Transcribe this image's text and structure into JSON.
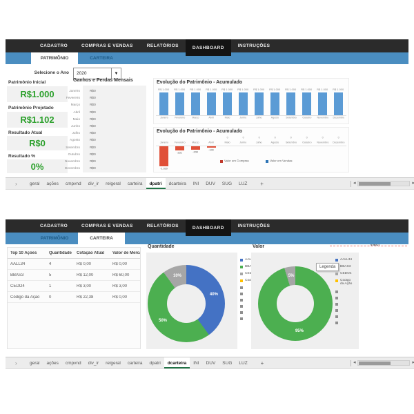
{
  "nav": {
    "items": [
      "CADASTRO",
      "COMPRAS E VENDAS",
      "RELATÓRIOS",
      "DASHBOARD",
      "INSTRUÇÕES"
    ],
    "active": "DASHBOARD"
  },
  "subtabs": {
    "items": [
      "PATRIMÔNIO",
      "CARTEIRA"
    ],
    "active_top": "PATRIMÔNIO",
    "active_bottom": "CARTEIRA"
  },
  "top": {
    "year": {
      "label": "Selecione o Ano",
      "value": "2020"
    },
    "cards": [
      {
        "label": "Patrimônio Inicial",
        "value": "R$1.000"
      },
      {
        "label": "Patrimônio Projetado",
        "value": "R$1.102"
      },
      {
        "label": "Resultado Atual",
        "value": "R$0"
      },
      {
        "label": "Resultado %",
        "value": "0%"
      }
    ],
    "monthly": {
      "title": "Ganhos e Perdas Mensais",
      "months": [
        "Janeiro",
        "Fevereiro",
        "Março",
        "Abril",
        "Maio",
        "Junho",
        "Julho",
        "Agosto",
        "Setembro",
        "Outubro",
        "Novembro",
        "Dezembro"
      ],
      "values": [
        "R$0",
        "R$0",
        "R$0",
        "R$0",
        "R$0",
        "R$0",
        "R$0",
        "R$0",
        "R$0",
        "R$0",
        "R$0",
        "R$0"
      ]
    }
  },
  "chart_data": [
    {
      "type": "bar",
      "title": "Evolução do Patrimônio - Acumulado",
      "categories": [
        "Janeiro",
        "Fevereiro",
        "Março",
        "Abril",
        "Maio",
        "Junho",
        "Julho",
        "Agosto",
        "Setembro",
        "Outubro",
        "Novembro",
        "Dezembro"
      ],
      "values": [
        1000,
        1000,
        1000,
        1000,
        1000,
        1000,
        1000,
        1000,
        1000,
        1000,
        1000,
        1000
      ],
      "value_labels": [
        "R$ 1.000",
        "R$ 1.000",
        "R$ 1.000",
        "R$ 1.000",
        "R$ 1.000",
        "R$ 1.000",
        "R$ 1.000",
        "R$ 1.000",
        "R$ 1.000",
        "R$ 1.000",
        "R$ 1.000",
        "R$ 1.000"
      ],
      "bar_color": "#5b9bd5",
      "ylim": [
        0,
        1000
      ]
    },
    {
      "type": "bar",
      "title": "Evolução do Patrimônio - Acumulado",
      "categories": [
        "Janeiro",
        "Fevereiro",
        "Março",
        "Abril",
        "Maio",
        "Junho",
        "Julho",
        "Agosto",
        "Setembro",
        "Outubro",
        "Novembro",
        "Dezembro"
      ],
      "values": [
        -1020,
        -231,
        -208,
        -100,
        0,
        0,
        0,
        0,
        0,
        0,
        0,
        0
      ],
      "value_labels": [
        "-1.020",
        "-231",
        "-208",
        "-100",
        "0",
        "0",
        "0",
        "0",
        "0",
        "0",
        "0",
        "0"
      ],
      "bar_color": "#e05038",
      "legend": [
        {
          "label": "Valor em Compras",
          "color": "#c0392b"
        },
        {
          "label": "Valor em Vendas",
          "color": "#2e75b6"
        }
      ],
      "ylim": [
        -1020,
        0
      ]
    },
    {
      "type": "pie",
      "title": "Quantidade",
      "labels": [
        "AALL34",
        "BBAS3",
        "CEDO4",
        "Código da Ação"
      ],
      "values": [
        4,
        5,
        1,
        0
      ],
      "pct_labels": [
        "40%",
        "50%",
        "10%",
        ""
      ],
      "colors": [
        "#4472c4",
        "#4caf50",
        "#a6a6a6",
        "#ffc000"
      ]
    },
    {
      "type": "pie",
      "title": "Valor",
      "labels": [
        "AALL34",
        "BBAS3",
        "CEDO4",
        "Código da Ação"
      ],
      "values": [
        0,
        60,
        3,
        0
      ],
      "pct_labels": [
        "",
        "95%",
        "5%",
        ""
      ],
      "colors": [
        "#4472c4",
        "#4caf50",
        "#a6a6a6",
        "#ffc000"
      ]
    }
  ],
  "bottom": {
    "table": {
      "headers": [
        "Top 10 Ações",
        "Quantidade",
        "Cotação Atual",
        "Valor de Mercado"
      ],
      "rows": [
        [
          "AALL34",
          "4",
          "R$ 0,00",
          "R$ 0,00"
        ],
        [
          "BBAS3",
          "5",
          "R$ 12,00",
          "R$ 60,00"
        ],
        [
          "CEDO4",
          "1",
          "R$ 3,00",
          "R$ 3,00"
        ],
        [
          "Código da Ação",
          "0",
          "R$ 22,38",
          "R$ 0,00"
        ]
      ]
    },
    "legend": {
      "labels": [
        "AALL34",
        "BBAS3",
        "CEDO4",
        "Código da Ação"
      ],
      "colors": [
        "#4472c4",
        "#4caf50",
        "#a6a6a6",
        "#ffc000"
      ],
      "extra_bullets": 6
    },
    "artifacts": {
      "selection_label": "Valor",
      "tooltip": "Legenda"
    }
  },
  "sheets": {
    "tabs": [
      "geral",
      "ações",
      "cmpvnd",
      "div_ir",
      "relgeral",
      "carteira",
      "dpatri",
      "dcarteira",
      "INI",
      "DUV",
      "SUG",
      "LUZ"
    ],
    "active_top": "dpatri",
    "active_bottom": "dcarteira",
    "add_label": "+"
  },
  "colors": {
    "navbar": "#2b2b2b",
    "accent_blue": "#4a8dc0",
    "bar_blue": "#5b9bd5",
    "bar_red": "#e05038",
    "value_green": "#2ca02c",
    "donut_green": "#4caf50",
    "donut_blue": "#4472c4",
    "donut_gray": "#a6a6a6",
    "legend_yellow": "#ffc000",
    "selection_dash": "#e8736a",
    "sheet_active_underline": "#217346"
  }
}
